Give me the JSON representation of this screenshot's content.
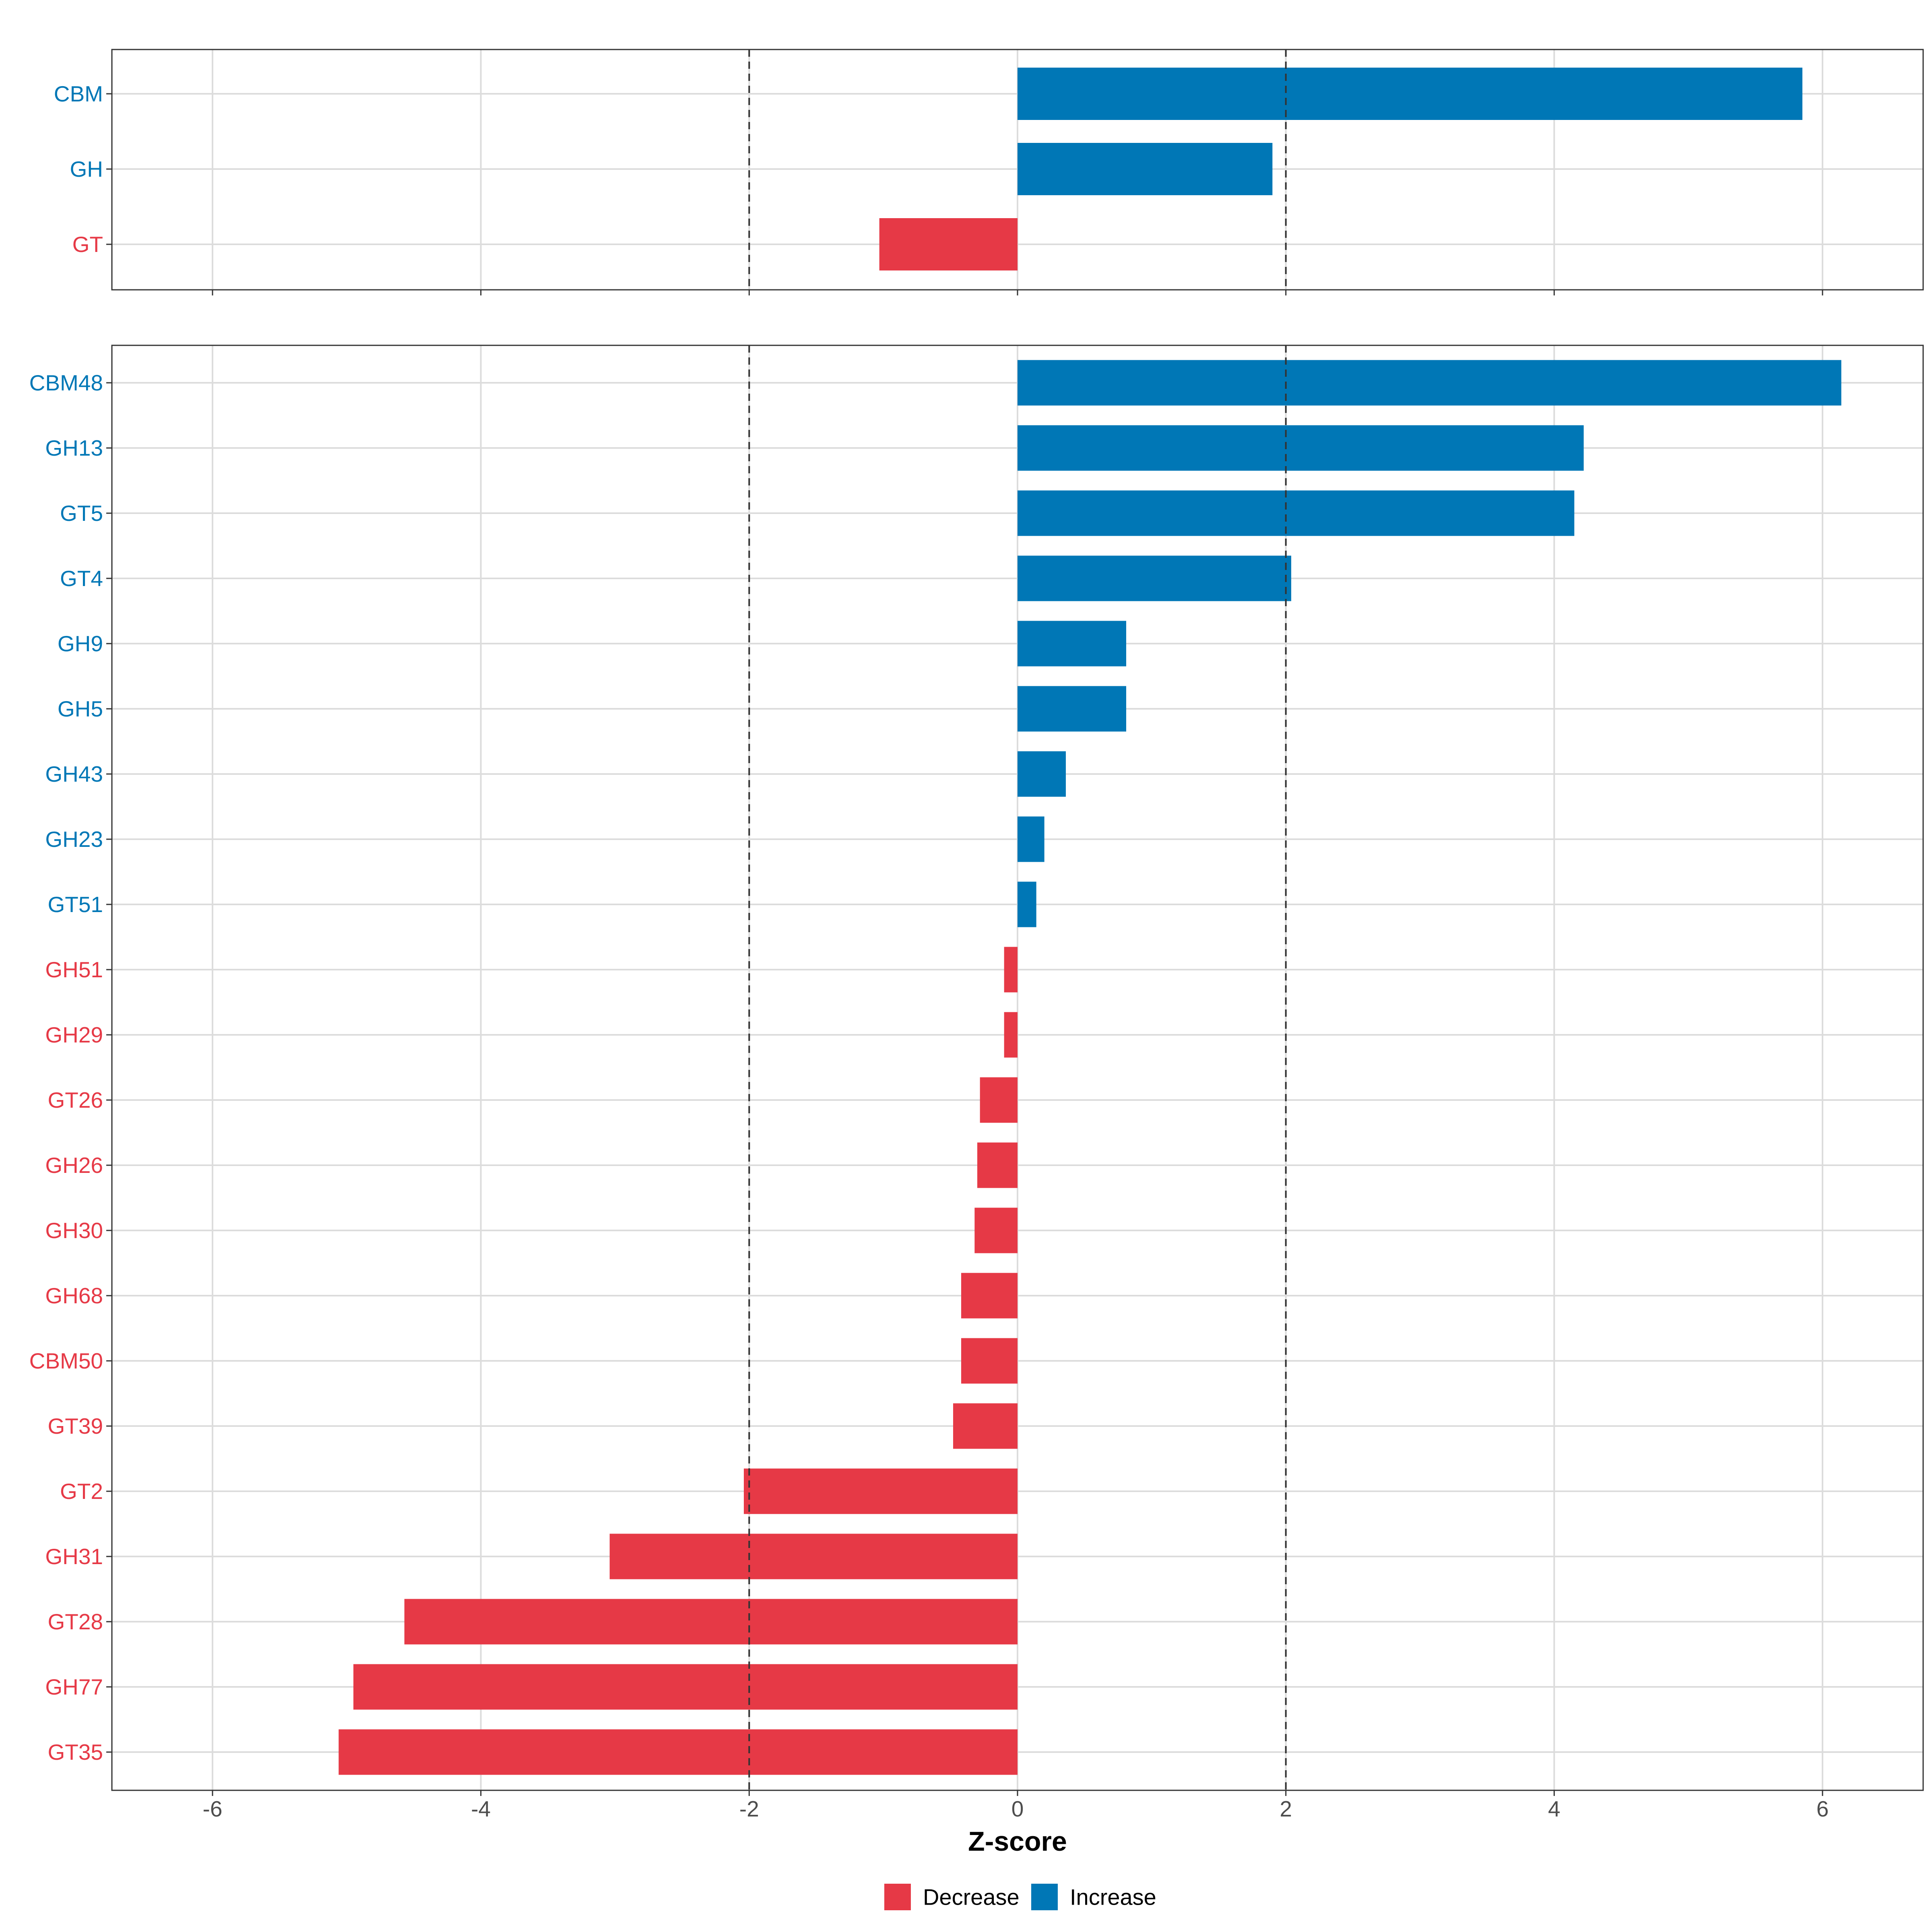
{
  "colors": {
    "decrease": "#E63946",
    "increase": "#0077B6"
  },
  "chart_data": [
    {
      "type": "bar",
      "orientation": "horizontal",
      "panel": "top",
      "categories": [
        "CBM",
        "GH",
        "GT"
      ],
      "values": [
        5.85,
        1.9,
        -1.03
      ],
      "directions": [
        "Increase",
        "Increase",
        "Decrease"
      ],
      "xlim": [
        -6.75,
        6.75
      ],
      "reference_lines": [
        -2,
        2
      ]
    },
    {
      "type": "bar",
      "orientation": "horizontal",
      "panel": "bottom",
      "categories": [
        "CBM48",
        "GH13",
        "GT5",
        "GT4",
        "GH9",
        "GH5",
        "GH43",
        "GH23",
        "GT51",
        "GH51",
        "GH29",
        "GT26",
        "GH26",
        "GH30",
        "GH68",
        "CBM50",
        "GT39",
        "GT2",
        "GH31",
        "GT28",
        "GH77",
        "GT35"
      ],
      "values": [
        6.14,
        4.22,
        4.15,
        2.04,
        0.81,
        0.81,
        0.36,
        0.2,
        0.14,
        -0.1,
        -0.1,
        -0.28,
        -0.3,
        -0.32,
        -0.42,
        -0.42,
        -0.48,
        -2.04,
        -3.04,
        -4.57,
        -4.95,
        -5.06
      ],
      "directions": [
        "Increase",
        "Increase",
        "Increase",
        "Increase",
        "Increase",
        "Increase",
        "Increase",
        "Increase",
        "Increase",
        "Decrease",
        "Decrease",
        "Decrease",
        "Decrease",
        "Decrease",
        "Decrease",
        "Decrease",
        "Decrease",
        "Decrease",
        "Decrease",
        "Decrease",
        "Decrease",
        "Decrease"
      ],
      "xlim": [
        -6.75,
        6.75
      ],
      "reference_lines": [
        -2,
        2
      ]
    }
  ],
  "x_axis": {
    "title": "Z-score",
    "tick_values": [
      -6,
      -4,
      -2,
      0,
      2,
      4,
      6
    ],
    "tick_labels": [
      "-6",
      "-4",
      "-2",
      "0",
      "2",
      "4",
      "6"
    ]
  },
  "legend": {
    "placement": "bottom",
    "items": [
      {
        "label": "Decrease",
        "key": "decrease"
      },
      {
        "label": "Increase",
        "key": "increase"
      }
    ]
  }
}
